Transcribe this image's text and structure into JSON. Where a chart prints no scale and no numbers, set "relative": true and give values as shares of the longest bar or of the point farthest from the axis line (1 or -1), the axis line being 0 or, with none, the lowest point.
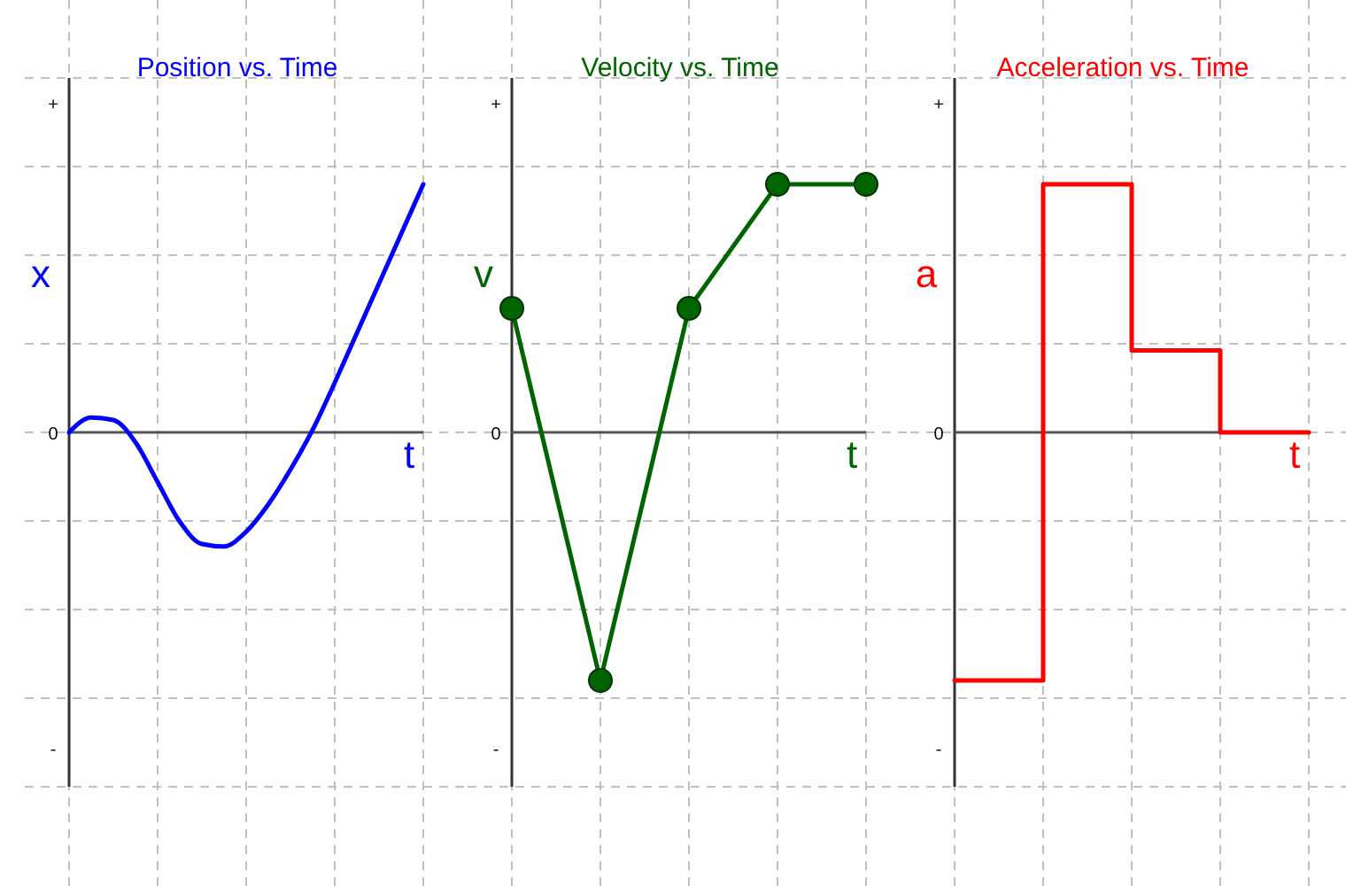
{
  "chart_data": [
    {
      "type": "line",
      "title": "Position vs. Time",
      "xlabel": "t",
      "ylabel": "x",
      "relative": true,
      "grid": true,
      "marker": "none",
      "annotations": [
        "+",
        "0",
        "-"
      ],
      "categories": [
        null,
        null,
        null,
        null,
        null,
        null,
        null,
        null,
        null,
        null,
        null,
        null,
        null,
        null,
        null,
        null,
        null
      ],
      "series": [
        {
          "color": "#0000ff",
          "values": [
            0,
            0.06,
            0.05,
            -0.04,
            -0.2,
            -0.36,
            -0.45,
            -0.46,
            -0.4,
            -0.29,
            -0.15,
            0.01,
            0.2,
            0.4,
            0.6,
            0.8,
            1
          ]
        }
      ]
    },
    {
      "type": "line",
      "title": "Velocity vs. Time",
      "xlabel": "t",
      "ylabel": "v",
      "relative": true,
      "grid": true,
      "marker": "circle",
      "annotations": [
        "+",
        "0",
        "-"
      ],
      "categories": [
        null,
        null,
        null,
        null,
        null
      ],
      "series": [
        {
          "color": "#006400",
          "values": [
            0.5,
            -1,
            0.5,
            1,
            1
          ]
        }
      ]
    },
    {
      "type": "step",
      "title": "Acceleration vs. Time",
      "xlabel": "t",
      "ylabel": "a",
      "relative": true,
      "grid": true,
      "marker": "none",
      "annotations": [
        "+",
        "0",
        "-"
      ],
      "categories": [
        null,
        null,
        null,
        null,
        null
      ],
      "series": [
        {
          "color": "#ff0000",
          "values": [
            -1,
            1,
            0.33,
            0,
            0
          ]
        }
      ]
    }
  ]
}
